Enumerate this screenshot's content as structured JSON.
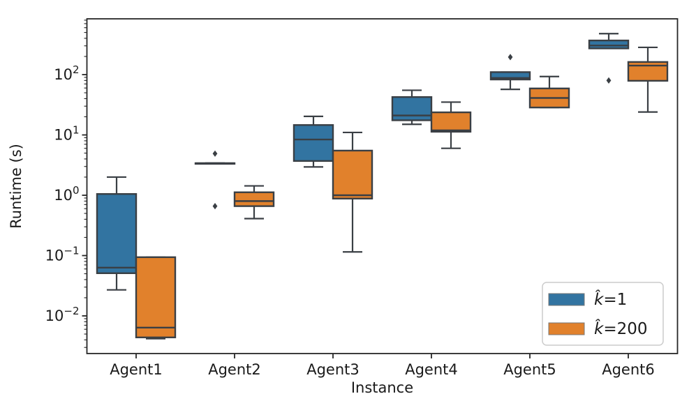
{
  "chart_data": {
    "type": "boxplot",
    "title": "",
    "xlabel": "Instance",
    "ylabel": "Runtime (s)",
    "yscale": "log",
    "ylim": [
      0.00265,
      830
    ],
    "ytick_exponents": [
      -2,
      -1,
      0,
      1,
      2
    ],
    "grid": false,
    "legend_position": "lower right",
    "categories": [
      "Agent1",
      "Agent2",
      "Agent3",
      "Agent4",
      "Agent5",
      "Agent6"
    ],
    "colors": {
      "series_blue": "#3274a1",
      "series_orange": "#e1812c",
      "box_edge": "#3a3f44",
      "spine": "#262626",
      "legend_border": "#cccccc",
      "swatch_border": "#777777"
    },
    "series": [
      {
        "name": "k̂=1",
        "label_symbol": "k̂",
        "label_rest": "=1",
        "color": "#3274a1",
        "boxes": [
          {
            "whislo": 0.027,
            "q1": 0.051,
            "med": 0.063,
            "q3": 1.05,
            "whishi": 2.0,
            "fliers": []
          },
          {
            "whislo": 3.4,
            "q1": 3.4,
            "med": 3.4,
            "q3": 3.4,
            "whishi": 3.4,
            "fliers": [
              4.9,
              0.66
            ]
          },
          {
            "whislo": 2.95,
            "q1": 3.7,
            "med": 8.4,
            "q3": 14.6,
            "whishi": 20.3,
            "fliers": []
          },
          {
            "whislo": 15,
            "q1": 17.5,
            "med": 21,
            "q3": 42.5,
            "whishi": 55,
            "fliers": []
          },
          {
            "whislo": 57,
            "q1": 83,
            "med": 88,
            "q3": 110,
            "whishi": 110,
            "fliers": [
              195
            ]
          },
          {
            "whislo": 272,
            "q1": 272,
            "med": 303,
            "q3": 368,
            "whishi": 478,
            "fliers": [
              80
            ]
          }
        ]
      },
      {
        "name": "k̂=200",
        "label_symbol": "k̂",
        "label_rest": "=200",
        "color": "#e1812c",
        "boxes": [
          {
            "whislo": 0.0042,
            "q1": 0.0044,
            "med": 0.0064,
            "q3": 0.094,
            "whishi": 0.094,
            "fliers": []
          },
          {
            "whislo": 0.41,
            "q1": 0.66,
            "med": 0.8,
            "q3": 1.12,
            "whishi": 1.43,
            "fliers": []
          },
          {
            "whislo": 0.115,
            "q1": 0.88,
            "med": 1.0,
            "q3": 5.5,
            "whishi": 11,
            "fliers": []
          },
          {
            "whislo": 6,
            "q1": 11.3,
            "med": 11.9,
            "q3": 23.7,
            "whishi": 35,
            "fliers": []
          },
          {
            "whislo": 28.5,
            "q1": 28.5,
            "med": 41,
            "q3": 59,
            "whishi": 93,
            "fliers": []
          },
          {
            "whislo": 24,
            "q1": 79,
            "med": 141,
            "q3": 162,
            "whishi": 283,
            "fliers": []
          }
        ]
      }
    ]
  }
}
